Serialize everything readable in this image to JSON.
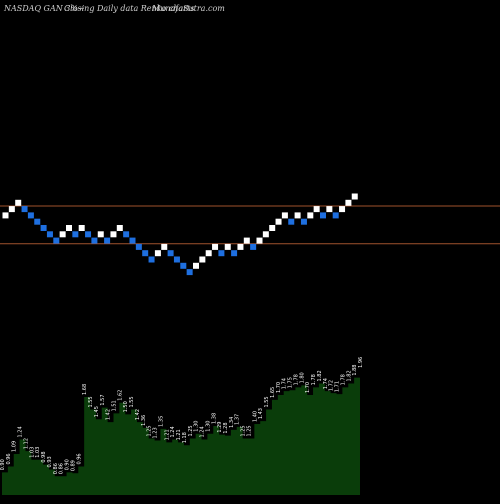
{
  "header": {
    "symbol_text": "NASDAQ GAN  3%~",
    "mode_text": "Closing Daily data  Renko  charts",
    "site_text": "MunafaSutra.com"
  },
  "colors": {
    "background": "#000000",
    "up_brick": "#ffffff",
    "down_brick": "#1e6fe0",
    "level_line": "#a0522d",
    "volume_fill": "#0a3d0a",
    "volume_label": "#ffffff"
  },
  "chart_data": [
    {
      "type": "renko",
      "brick_size_percent": 3,
      "bricks": [
        {
          "y": 24,
          "dir": "up"
        },
        {
          "y": 25,
          "dir": "up"
        },
        {
          "y": 26,
          "dir": "up"
        },
        {
          "y": 25,
          "dir": "down"
        },
        {
          "y": 24,
          "dir": "down"
        },
        {
          "y": 23,
          "dir": "down"
        },
        {
          "y": 22,
          "dir": "down"
        },
        {
          "y": 21,
          "dir": "down"
        },
        {
          "y": 20,
          "dir": "down"
        },
        {
          "y": 21,
          "dir": "up"
        },
        {
          "y": 22,
          "dir": "up"
        },
        {
          "y": 21,
          "dir": "down"
        },
        {
          "y": 22,
          "dir": "up"
        },
        {
          "y": 21,
          "dir": "down"
        },
        {
          "y": 20,
          "dir": "down"
        },
        {
          "y": 21,
          "dir": "up"
        },
        {
          "y": 20,
          "dir": "down"
        },
        {
          "y": 21,
          "dir": "up"
        },
        {
          "y": 22,
          "dir": "up"
        },
        {
          "y": 21,
          "dir": "down"
        },
        {
          "y": 20,
          "dir": "down"
        },
        {
          "y": 19,
          "dir": "down"
        },
        {
          "y": 18,
          "dir": "down"
        },
        {
          "y": 17,
          "dir": "down"
        },
        {
          "y": 18,
          "dir": "up"
        },
        {
          "y": 19,
          "dir": "up"
        },
        {
          "y": 18,
          "dir": "down"
        },
        {
          "y": 17,
          "dir": "down"
        },
        {
          "y": 16,
          "dir": "down"
        },
        {
          "y": 15,
          "dir": "down"
        },
        {
          "y": 16,
          "dir": "up"
        },
        {
          "y": 17,
          "dir": "up"
        },
        {
          "y": 18,
          "dir": "up"
        },
        {
          "y": 19,
          "dir": "up"
        },
        {
          "y": 18,
          "dir": "down"
        },
        {
          "y": 19,
          "dir": "up"
        },
        {
          "y": 18,
          "dir": "down"
        },
        {
          "y": 19,
          "dir": "up"
        },
        {
          "y": 20,
          "dir": "up"
        },
        {
          "y": 19,
          "dir": "down"
        },
        {
          "y": 20,
          "dir": "up"
        },
        {
          "y": 21,
          "dir": "up"
        },
        {
          "y": 22,
          "dir": "up"
        },
        {
          "y": 23,
          "dir": "up"
        },
        {
          "y": 24,
          "dir": "up"
        },
        {
          "y": 23,
          "dir": "down"
        },
        {
          "y": 24,
          "dir": "up"
        },
        {
          "y": 23,
          "dir": "down"
        },
        {
          "y": 24,
          "dir": "up"
        },
        {
          "y": 25,
          "dir": "up"
        },
        {
          "y": 24,
          "dir": "down"
        },
        {
          "y": 25,
          "dir": "up"
        },
        {
          "y": 24,
          "dir": "down"
        },
        {
          "y": 25,
          "dir": "up"
        },
        {
          "y": 26,
          "dir": "up"
        },
        {
          "y": 27,
          "dir": "up"
        }
      ],
      "level_lines": [
        25.5,
        19.5
      ]
    },
    {
      "type": "area",
      "values": [
        0.9,
        0.96,
        1.09,
        1.24,
        1.12,
        1.03,
        1.03,
        0.98,
        0.93,
        0.86,
        0.86,
        0.9,
        0.89,
        0.96,
        1.68,
        1.55,
        1.45,
        1.57,
        1.42,
        1.51,
        1.62,
        1.5,
        1.55,
        1.42,
        1.36,
        1.25,
        1.23,
        1.35,
        1.21,
        1.24,
        1.21,
        1.18,
        1.25,
        1.3,
        1.24,
        1.3,
        1.38,
        1.29,
        1.28,
        1.34,
        1.37,
        1.25,
        1.25,
        1.4,
        1.43,
        1.55,
        1.65,
        1.7,
        1.74,
        1.75,
        1.78,
        1.8,
        1.7,
        1.78,
        1.82,
        1.74,
        1.72,
        1.71,
        1.78,
        1.82,
        1.88,
        1.96
      ],
      "labels": [
        "0.90",
        "0.96",
        "1.09",
        "1.24",
        "1.12",
        "1.03",
        "1.03",
        "0.98",
        "0.93",
        "0.86",
        "0.86",
        "0.90",
        "0.89",
        "0.96",
        "1.68",
        "1.55",
        "1.45",
        "1.57",
        "1.42",
        "1.51",
        "1.62",
        "1.50",
        "1.55",
        "1.42",
        "1.36",
        "1.25",
        "1.23",
        "1.35",
        "1.21",
        "1.24",
        "1.21",
        "1.18",
        "1.25",
        "1.30",
        "1.24",
        "1.30",
        "1.38",
        "1.29",
        "1.28",
        "1.34",
        "1.37",
        "1.25",
        "1.25",
        "1.40",
        "1.43",
        "1.55",
        "1.65",
        "1.70",
        "1.74",
        "1.75",
        "1.78",
        "1.80",
        "1.70",
        "1.78",
        "1.82",
        "1.74",
        "1.72",
        "1.71",
        "1.78",
        "1.82",
        "1.88",
        "1.96"
      ]
    }
  ]
}
